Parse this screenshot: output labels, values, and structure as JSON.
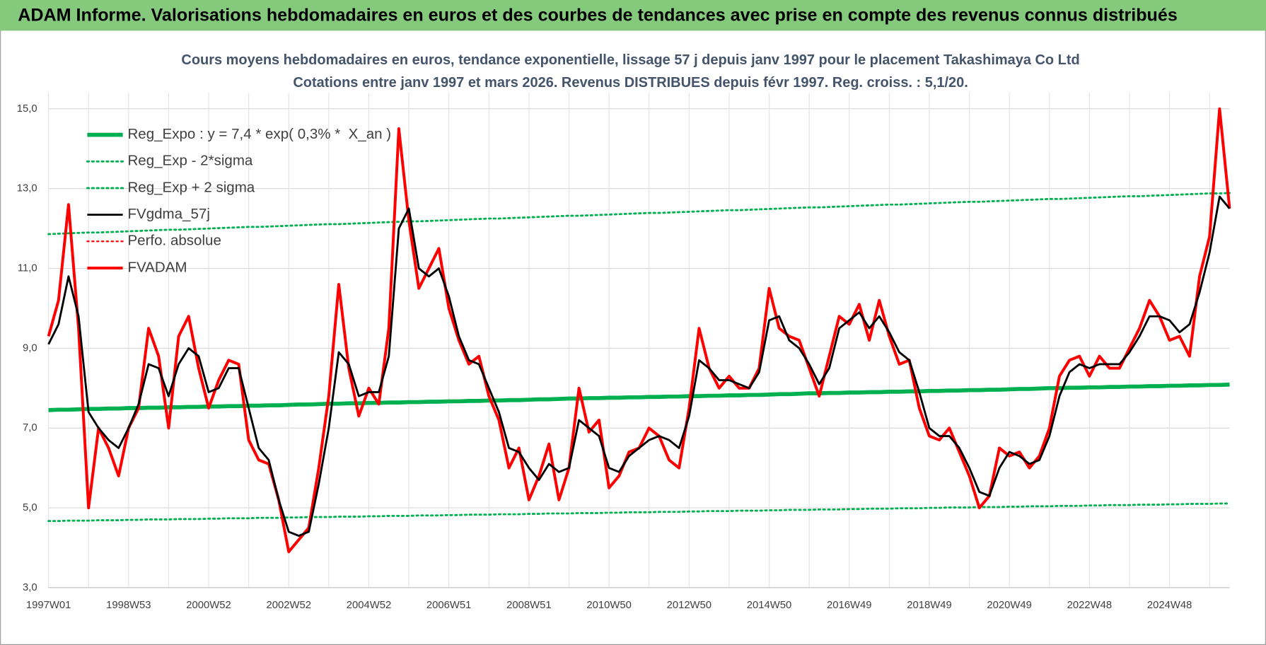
{
  "header": {
    "title": "ADAM Informe. Valorisations hebdomadaires en euros et des courbes de tendances avec prise en compte des revenus connus distribués"
  },
  "chart_data": {
    "type": "line",
    "title": "Cours moyens hebdomadaires en euros, tendance exponentielle, lissage 57 j depuis janv 1997 pour le placement Takashimaya Co Ltd",
    "subtitle": "Cotations entre janv 1997 et mars 2026. Revenus DISTRIBUES depuis févr 1997. Reg. croiss. : 5,1/20.",
    "categories": [
      "1997W01",
      null,
      null,
      null,
      null,
      null,
      null,
      null,
      "1998W53",
      null,
      null,
      null,
      null,
      null,
      null,
      null,
      "2000W52",
      null,
      null,
      null,
      null,
      null,
      null,
      null,
      "2002W52",
      null,
      null,
      null,
      null,
      null,
      null,
      null,
      "2004W52",
      null,
      null,
      null,
      null,
      null,
      null,
      null,
      "2006W51",
      null,
      null,
      null,
      null,
      null,
      null,
      null,
      "2008W51",
      null,
      null,
      null,
      null,
      null,
      null,
      null,
      "2010W50",
      null,
      null,
      null,
      null,
      null,
      null,
      null,
      "2012W50",
      null,
      null,
      null,
      null,
      null,
      null,
      null,
      "2014W50",
      null,
      null,
      null,
      null,
      null,
      null,
      null,
      "2016W49",
      null,
      null,
      null,
      null,
      null,
      null,
      null,
      "2018W49",
      null,
      null,
      null,
      null,
      null,
      null,
      null,
      "2020W49",
      null,
      null,
      null,
      null,
      null,
      null,
      null,
      "2022W48",
      null,
      null,
      null,
      null,
      null,
      null,
      null,
      "2024W48",
      null,
      null,
      null,
      null,
      null,
      null
    ],
    "ylim": [
      3,
      15.4
    ],
    "yticks": [
      {
        "value": 3,
        "label": "3,0"
      },
      {
        "value": 5,
        "label": "5,0"
      },
      {
        "value": 7,
        "label": "7,0"
      },
      {
        "value": 9,
        "label": "9,0"
      },
      {
        "value": 11,
        "label": "11,0"
      },
      {
        "value": 13,
        "label": "13,0"
      },
      {
        "value": 15,
        "label": "15,0"
      }
    ],
    "grid": true,
    "legend": "top-left",
    "series": [
      {
        "name": "Reg_Expo : y = 7,4 * exp( 0,3% *  X_an )",
        "color": "#00b050",
        "style": "solid",
        "values": [
          7.45,
          7.46,
          7.46,
          7.47,
          7.48,
          7.48,
          7.49,
          7.49,
          7.5,
          7.5,
          7.51,
          7.51,
          7.52,
          7.52,
          7.53,
          7.53,
          7.54,
          7.54,
          7.55,
          7.55,
          7.56,
          7.56,
          7.57,
          7.57,
          7.58,
          7.59,
          7.59,
          7.6,
          7.61,
          7.61,
          7.62,
          7.62,
          7.63,
          7.63,
          7.64,
          7.64,
          7.65,
          7.65,
          7.66,
          7.66,
          7.67,
          7.67,
          7.68,
          7.68,
          7.69,
          7.69,
          7.7,
          7.7,
          7.71,
          7.72,
          7.72,
          7.73,
          7.74,
          7.74,
          7.75,
          7.75,
          7.76,
          7.76,
          7.77,
          7.77,
          7.78,
          7.78,
          7.79,
          7.79,
          7.8,
          7.8,
          7.81,
          7.81,
          7.82,
          7.82,
          7.83,
          7.83,
          7.84,
          7.85,
          7.85,
          7.86,
          7.87,
          7.87,
          7.88,
          7.88,
          7.89,
          7.89,
          7.9,
          7.9,
          7.91,
          7.91,
          7.92,
          7.92,
          7.93,
          7.93,
          7.94,
          7.94,
          7.95,
          7.95,
          7.96,
          7.96,
          7.97,
          7.98,
          7.98,
          7.99,
          8.0,
          8.0,
          8.01,
          8.01,
          8.02,
          8.02,
          8.03,
          8.03,
          8.04,
          8.04,
          8.05,
          8.05,
          8.06,
          8.06,
          8.07,
          8.07,
          8.08,
          8.08,
          8.09
        ]
      },
      {
        "name": "Reg_Exp - 2*sigma",
        "color": "#00b050",
        "style": "dotted",
        "values": [
          4.67,
          4.67,
          4.68,
          4.68,
          4.68,
          4.69,
          4.69,
          4.69,
          4.7,
          4.7,
          4.71,
          4.71,
          4.71,
          4.72,
          4.72,
          4.72,
          4.73,
          4.73,
          4.74,
          4.74,
          4.74,
          4.75,
          4.75,
          4.75,
          4.76,
          4.76,
          4.77,
          4.77,
          4.77,
          4.78,
          4.78,
          4.78,
          4.79,
          4.79,
          4.8,
          4.8,
          4.8,
          4.81,
          4.81,
          4.81,
          4.82,
          4.82,
          4.83,
          4.83,
          4.83,
          4.84,
          4.84,
          4.84,
          4.85,
          4.85,
          4.86,
          4.86,
          4.86,
          4.87,
          4.87,
          4.87,
          4.88,
          4.88,
          4.89,
          4.89,
          4.89,
          4.9,
          4.9,
          4.9,
          4.91,
          4.91,
          4.92,
          4.92,
          4.92,
          4.93,
          4.93,
          4.93,
          4.94,
          4.94,
          4.95,
          4.95,
          4.95,
          4.96,
          4.96,
          4.96,
          4.97,
          4.97,
          4.98,
          4.98,
          4.98,
          4.99,
          4.99,
          4.99,
          5.0,
          5.0,
          5.01,
          5.01,
          5.01,
          5.02,
          5.02,
          5.02,
          5.03,
          5.03,
          5.04,
          5.04,
          5.04,
          5.05,
          5.05,
          5.05,
          5.06,
          5.06,
          5.07,
          5.07,
          5.07,
          5.08,
          5.08,
          5.08,
          5.09,
          5.09,
          5.1,
          5.1,
          5.1,
          5.11,
          5.11
        ]
      },
      {
        "name": "Reg_Exp + 2 sigma",
        "color": "#00b050",
        "style": "dotted",
        "values": [
          11.86,
          11.87,
          11.88,
          11.89,
          11.9,
          11.9,
          11.91,
          11.92,
          11.93,
          11.94,
          11.95,
          11.96,
          11.97,
          11.97,
          11.98,
          11.99,
          12.0,
          12.01,
          12.02,
          12.03,
          12.04,
          12.04,
          12.05,
          12.06,
          12.07,
          12.08,
          12.09,
          12.1,
          12.11,
          12.11,
          12.12,
          12.13,
          12.14,
          12.15,
          12.16,
          12.17,
          12.18,
          12.18,
          12.19,
          12.2,
          12.21,
          12.22,
          12.23,
          12.24,
          12.25,
          12.25,
          12.26,
          12.27,
          12.28,
          12.29,
          12.3,
          12.31,
          12.32,
          12.32,
          12.33,
          12.34,
          12.35,
          12.36,
          12.37,
          12.38,
          12.39,
          12.39,
          12.4,
          12.41,
          12.42,
          12.43,
          12.44,
          12.45,
          12.46,
          12.46,
          12.47,
          12.48,
          12.49,
          12.5,
          12.51,
          12.52,
          12.53,
          12.53,
          12.54,
          12.55,
          12.56,
          12.57,
          12.58,
          12.59,
          12.6,
          12.6,
          12.61,
          12.62,
          12.63,
          12.64,
          12.65,
          12.66,
          12.67,
          12.67,
          12.68,
          12.69,
          12.7,
          12.71,
          12.72,
          12.73,
          12.74,
          12.74,
          12.75,
          12.76,
          12.77,
          12.78,
          12.79,
          12.8,
          12.81,
          12.81,
          12.82,
          12.83,
          12.84,
          12.85,
          12.86,
          12.87,
          12.88,
          12.88,
          12.89
        ]
      },
      {
        "name": "FVgdma_57j",
        "color": "#000000",
        "style": "solid",
        "values": [
          9.1,
          9.6,
          10.8,
          9.8,
          7.4,
          7.0,
          6.7,
          6.5,
          7.0,
          7.6,
          8.6,
          8.5,
          7.8,
          8.6,
          9.0,
          8.8,
          7.9,
          8.0,
          8.5,
          8.5,
          7.5,
          6.5,
          6.2,
          5.2,
          4.4,
          4.3,
          4.4,
          5.6,
          7.0,
          8.9,
          8.6,
          7.8,
          7.9,
          7.9,
          8.8,
          12.0,
          12.5,
          11.0,
          10.8,
          11.0,
          10.3,
          9.3,
          8.7,
          8.6,
          8.0,
          7.4,
          6.5,
          6.4,
          6.0,
          5.7,
          6.1,
          5.9,
          6.0,
          7.2,
          7.0,
          6.8,
          6.0,
          5.9,
          6.3,
          6.5,
          6.7,
          6.8,
          6.7,
          6.5,
          7.3,
          8.7,
          8.5,
          8.2,
          8.2,
          8.1,
          8.0,
          8.4,
          9.7,
          9.8,
          9.2,
          9.0,
          8.6,
          8.1,
          8.5,
          9.5,
          9.7,
          9.9,
          9.5,
          9.8,
          9.4,
          8.9,
          8.7,
          7.9,
          7.0,
          6.8,
          6.8,
          6.5,
          6.0,
          5.4,
          5.3,
          6.0,
          6.4,
          6.3,
          6.1,
          6.2,
          6.8,
          7.8,
          8.4,
          8.6,
          8.5,
          8.6,
          8.6,
          8.6,
          8.9,
          9.3,
          9.8,
          9.8,
          9.7,
          9.4,
          9.6,
          10.4,
          11.4,
          12.8,
          12.5
        ]
      },
      {
        "name": "Perfo. absolue",
        "color": "#ff0000",
        "style": "dotted"
      },
      {
        "name": "FVADAM",
        "color": "#ff0000",
        "style": "solid",
        "values": [
          9.3,
          10.2,
          12.6,
          9.5,
          5.0,
          7.0,
          6.5,
          5.8,
          7.0,
          7.5,
          9.5,
          8.8,
          7.0,
          9.3,
          9.8,
          8.5,
          7.5,
          8.2,
          8.7,
          8.6,
          6.7,
          6.2,
          6.1,
          5.2,
          3.9,
          4.2,
          4.5,
          6.0,
          7.8,
          10.6,
          8.5,
          7.3,
          8.0,
          7.6,
          9.5,
          14.5,
          12.2,
          10.5,
          11.0,
          11.5,
          10.0,
          9.2,
          8.6,
          8.8,
          7.8,
          7.2,
          6.0,
          6.5,
          5.2,
          5.8,
          6.6,
          5.2,
          6.0,
          8.0,
          6.9,
          7.2,
          5.5,
          5.8,
          6.4,
          6.5,
          7.0,
          6.8,
          6.2,
          6.0,
          7.5,
          9.5,
          8.5,
          8.0,
          8.3,
          8.0,
          8.0,
          8.5,
          10.5,
          9.5,
          9.3,
          9.2,
          8.5,
          7.8,
          8.8,
          9.8,
          9.6,
          10.1,
          9.2,
          10.2,
          9.3,
          8.6,
          8.7,
          7.5,
          6.8,
          6.7,
          7.0,
          6.4,
          5.8,
          5.0,
          5.3,
          6.5,
          6.3,
          6.4,
          6.0,
          6.3,
          7.0,
          8.3,
          8.7,
          8.8,
          8.3,
          8.8,
          8.5,
          8.5,
          9.0,
          9.5,
          10.2,
          9.8,
          9.2,
          9.3,
          8.8,
          10.8,
          11.8,
          15.0,
          12.5
        ]
      }
    ]
  }
}
